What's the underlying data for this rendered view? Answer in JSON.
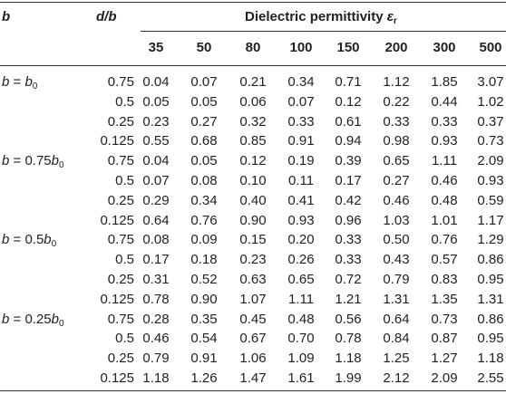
{
  "header": {
    "b_col": "b",
    "db_col": "d/b",
    "group_title": "Dielectric permittivity εr",
    "permittivities": [
      "35",
      "50",
      "80",
      "100",
      "150",
      "200",
      "300",
      "500"
    ]
  },
  "groups": [
    {
      "b_label": "b = b0",
      "rows": [
        {
          "d": "0.75",
          "v": [
            "0.04",
            "0.07",
            "0.21",
            "0.34",
            "0.71",
            "1.12",
            "1.85",
            "3.07"
          ]
        },
        {
          "d": "0.5",
          "v": [
            "0.05",
            "0.05",
            "0.06",
            "0.07",
            "0.12",
            "0.22",
            "0.44",
            "1.02"
          ]
        },
        {
          "d": "0.25",
          "v": [
            "0.23",
            "0.27",
            "0.32",
            "0.33",
            "0.61",
            "0.33",
            "0.33",
            "0.37"
          ]
        },
        {
          "d": "0.125",
          "v": [
            "0.55",
            "0.68",
            "0.85",
            "0.91",
            "0.94",
            "0.98",
            "0.93",
            "0.73"
          ]
        }
      ]
    },
    {
      "b_label": "b = 0.75b0",
      "rows": [
        {
          "d": "0.75",
          "v": [
            "0.04",
            "0.05",
            "0.12",
            "0.19",
            "0.39",
            "0.65",
            "1.11",
            "2.09"
          ]
        },
        {
          "d": "0.5",
          "v": [
            "0.07",
            "0.08",
            "0.10",
            "0.11",
            "0.17",
            "0.27",
            "0.46",
            "0.93"
          ]
        },
        {
          "d": "0.25",
          "v": [
            "0.29",
            "0.34",
            "0.40",
            "0.41",
            "0.42",
            "0.46",
            "0.48",
            "0.59"
          ]
        },
        {
          "d": "0.125",
          "v": [
            "0.64",
            "0.76",
            "0.90",
            "0.93",
            "0.96",
            "1.03",
            "1.01",
            "1.17"
          ]
        }
      ]
    },
    {
      "b_label": "b = 0.5b0",
      "rows": [
        {
          "d": "0.75",
          "v": [
            "0.08",
            "0.09",
            "0.15",
            "0.20",
            "0.33",
            "0.50",
            "0.76",
            "1.29"
          ]
        },
        {
          "d": "0.5",
          "v": [
            "0.17",
            "0.18",
            "0.23",
            "0.26",
            "0.33",
            "0.43",
            "0.57",
            "0.86"
          ]
        },
        {
          "d": "0.25",
          "v": [
            "0.31",
            "0.52",
            "0.63",
            "0.65",
            "0.72",
            "0.79",
            "0.83",
            "0.95"
          ]
        },
        {
          "d": "0.125",
          "v": [
            "0.78",
            "0.90",
            "1.07",
            "1.11",
            "1.21",
            "1.31",
            "1.35",
            "1.31"
          ]
        }
      ]
    },
    {
      "b_label": "b = 0.25b0",
      "rows": [
        {
          "d": "0.75",
          "v": [
            "0.28",
            "0.35",
            "0.45",
            "0.48",
            "0.56",
            "0.64",
            "0.73",
            "0.86"
          ]
        },
        {
          "d": "0.5",
          "v": [
            "0.46",
            "0.54",
            "0.67",
            "0.70",
            "0.78",
            "0.84",
            "0.87",
            "0.95"
          ]
        },
        {
          "d": "0.25",
          "v": [
            "0.79",
            "0.91",
            "1.06",
            "1.09",
            "1.18",
            "1.25",
            "1.27",
            "1.18"
          ]
        },
        {
          "d": "0.125",
          "v": [
            "1.18",
            "1.26",
            "1.47",
            "1.61",
            "1.99",
            "2.12",
            "2.09",
            "2.55"
          ]
        }
      ]
    }
  ]
}
